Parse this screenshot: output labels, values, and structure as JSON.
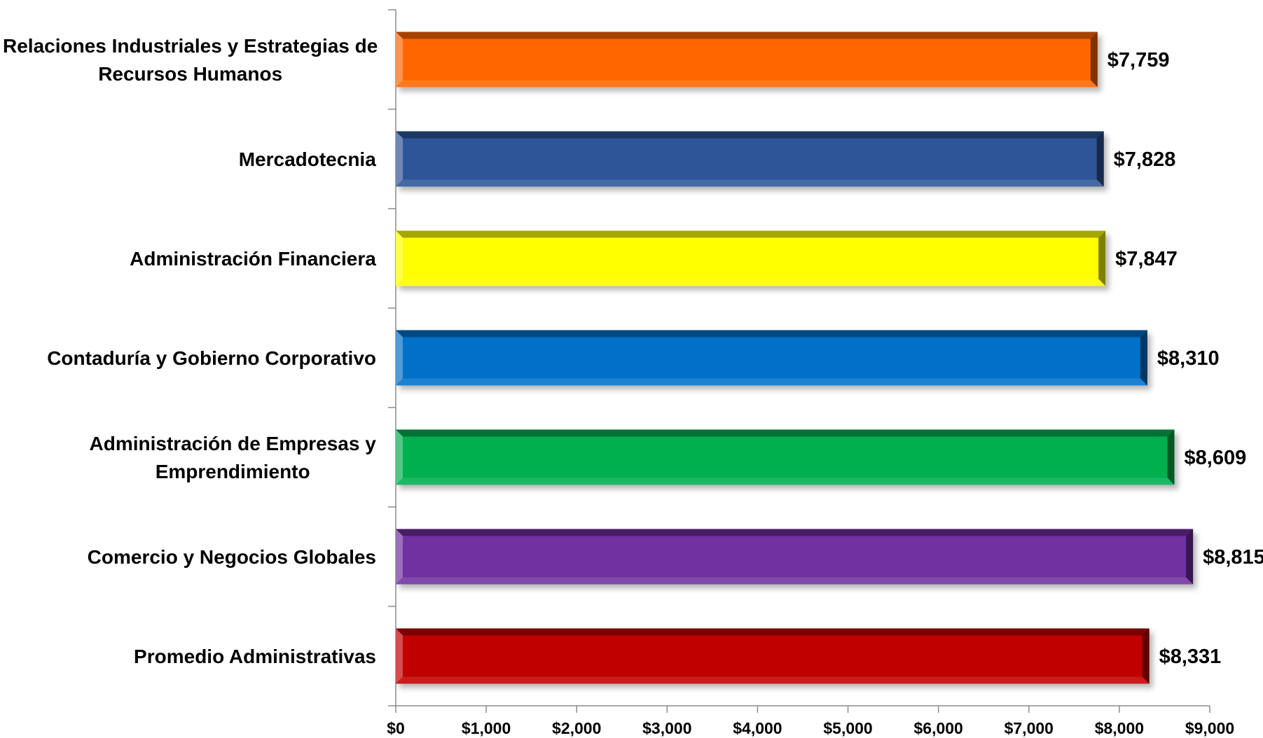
{
  "chart_data": {
    "type": "bar",
    "orientation": "horizontal",
    "categories": [
      "Relaciones Industriales y Estrategias de Recursos Humanos",
      "Mercadotecnia",
      "Administración Financiera",
      "Contaduría y Gobierno Corporativo",
      "Administración de Empresas y Emprendimiento",
      "Comercio y Negocios Globales",
      "Promedio Administrativas"
    ],
    "category_lines": [
      [
        "Relaciones Industriales y Estrategias de",
        "Recursos Humanos"
      ],
      [
        "Mercadotecnia"
      ],
      [
        "Administración Financiera"
      ],
      [
        "Contaduría y Gobierno Corporativo"
      ],
      [
        "Administración de Empresas y",
        "Emprendimiento"
      ],
      [
        "Comercio y Negocios Globales"
      ],
      [
        "Promedio Administrativas"
      ]
    ],
    "values": [
      7759,
      7828,
      7847,
      8310,
      8609,
      8815,
      8331
    ],
    "value_labels": [
      "$7,759",
      "$7,828",
      "$7,847",
      "$8,310",
      "$8,609",
      "$8,815",
      "$8,331"
    ],
    "colors": [
      "#FF6600",
      "#2E5597",
      "#FFFF00",
      "#0070C8",
      "#00B050",
      "#7030A0",
      "#C00000"
    ],
    "xlim": [
      0,
      9000
    ],
    "xticks": [
      0,
      1000,
      2000,
      3000,
      4000,
      5000,
      6000,
      7000,
      8000,
      9000
    ],
    "xtick_labels": [
      "$0",
      "$1,000",
      "$2,000",
      "$3,000",
      "$4,000",
      "$5,000",
      "$6,000",
      "$7,000",
      "$8,000",
      "$9,000"
    ],
    "title": "",
    "xlabel": "",
    "ylabel": "",
    "grid": false,
    "legend": "none",
    "bar_style": "3d-bevel"
  }
}
